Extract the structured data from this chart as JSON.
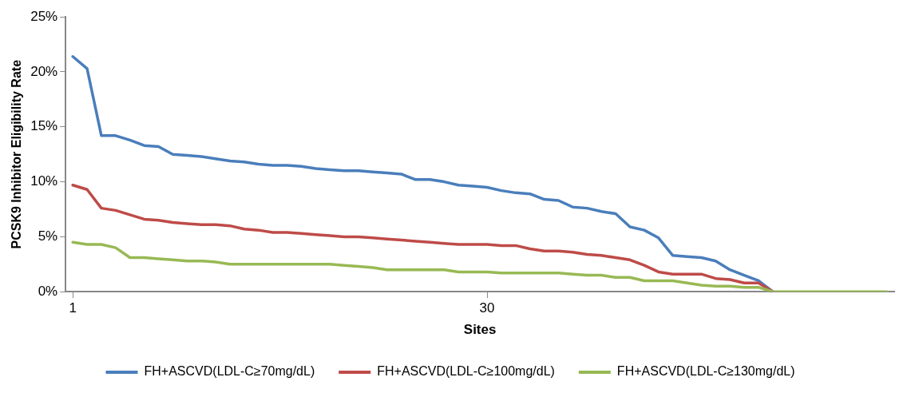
{
  "chart_data": {
    "type": "line",
    "xlabel": "Sites",
    "ylabel": "PCSK9 Inhibitor Eligibility Rate",
    "categories": [
      "1",
      null,
      null,
      null,
      null,
      null,
      null,
      null,
      null,
      null,
      null,
      null,
      null,
      null,
      null,
      null,
      null,
      null,
      null,
      null,
      null,
      null,
      null,
      null,
      null,
      null,
      null,
      null,
      null,
      "30",
      null,
      null,
      null,
      null,
      null,
      null,
      null,
      null,
      null,
      null,
      null,
      null,
      null,
      null,
      null,
      null,
      null,
      null,
      null,
      null,
      null,
      null,
      null,
      null,
      null,
      null,
      null,
      null
    ],
    "series": [
      {
        "name": "FH+ASCVD(LDL-C≥70mg/dL)",
        "color": "#4a7ebb",
        "values": [
          21.4,
          20.3,
          14.2,
          14.2,
          13.8,
          13.3,
          13.2,
          12.5,
          12.4,
          12.3,
          12.1,
          11.9,
          11.8,
          11.6,
          11.5,
          11.5,
          11.4,
          11.2,
          11.1,
          11.0,
          11.0,
          10.9,
          10.8,
          10.7,
          10.2,
          10.2,
          10.0,
          9.7,
          9.6,
          9.5,
          9.2,
          9.0,
          8.9,
          8.4,
          8.3,
          7.7,
          7.6,
          7.3,
          7.1,
          5.9,
          5.6,
          4.9,
          3.3,
          3.2,
          3.1,
          2.8,
          2.0,
          1.5,
          1.0,
          0,
          null,
          null,
          null,
          null,
          null,
          null,
          null,
          null
        ]
      },
      {
        "name": "FH+ASCVD(LDL-C≥100mg/dL)",
        "color": "#be4b48",
        "values": [
          9.7,
          9.3,
          7.6,
          7.4,
          7.0,
          6.6,
          6.5,
          6.3,
          6.2,
          6.1,
          6.1,
          6.0,
          5.7,
          5.6,
          5.4,
          5.4,
          5.3,
          5.2,
          5.1,
          5.0,
          5.0,
          4.9,
          4.8,
          4.7,
          4.6,
          4.5,
          4.4,
          4.3,
          4.3,
          4.3,
          4.2,
          4.2,
          3.9,
          3.7,
          3.7,
          3.6,
          3.4,
          3.3,
          3.1,
          2.9,
          2.4,
          1.8,
          1.6,
          1.6,
          1.6,
          1.2,
          1.1,
          0.8,
          0.8,
          0,
          null,
          null,
          null,
          null,
          null,
          null,
          null,
          null
        ]
      },
      {
        "name": "FH+ASCVD(LDL-C≥130mg/dL)",
        "color": "#98b954",
        "values": [
          4.5,
          4.3,
          4.3,
          4.0,
          3.1,
          3.1,
          3.0,
          2.9,
          2.8,
          2.8,
          2.7,
          2.5,
          2.5,
          2.5,
          2.5,
          2.5,
          2.5,
          2.5,
          2.5,
          2.4,
          2.3,
          2.2,
          2.0,
          2.0,
          2.0,
          2.0,
          2.0,
          1.8,
          1.8,
          1.8,
          1.7,
          1.7,
          1.7,
          1.7,
          1.7,
          1.6,
          1.5,
          1.5,
          1.3,
          1.3,
          1.0,
          1.0,
          1.0,
          0.8,
          0.6,
          0.5,
          0.5,
          0.4,
          0.4,
          0,
          0,
          0,
          0,
          0,
          0,
          0,
          0,
          0
        ]
      }
    ],
    "ylim": [
      0,
      25
    ],
    "yticks": [
      {
        "value": 0,
        "label": "0%"
      },
      {
        "value": 5,
        "label": "5%"
      },
      {
        "value": 10,
        "label": "10%"
      },
      {
        "value": 15,
        "label": "15%"
      },
      {
        "value": 20,
        "label": "20%"
      },
      {
        "value": 25,
        "label": "25%"
      }
    ],
    "grid": false,
    "legend": "bottom",
    "marker": "none",
    "line_style": "solid"
  }
}
